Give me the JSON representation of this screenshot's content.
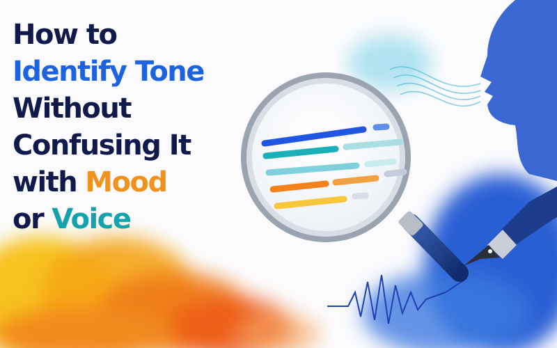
{
  "header": {
    "title_lines": [
      [
        "How to"
      ],
      [
        "Identify Tone"
      ],
      [
        "Without"
      ],
      [
        "Confusing It"
      ],
      [
        "with",
        "Mood"
      ],
      [
        "or",
        "Voice"
      ]
    ]
  }
}
